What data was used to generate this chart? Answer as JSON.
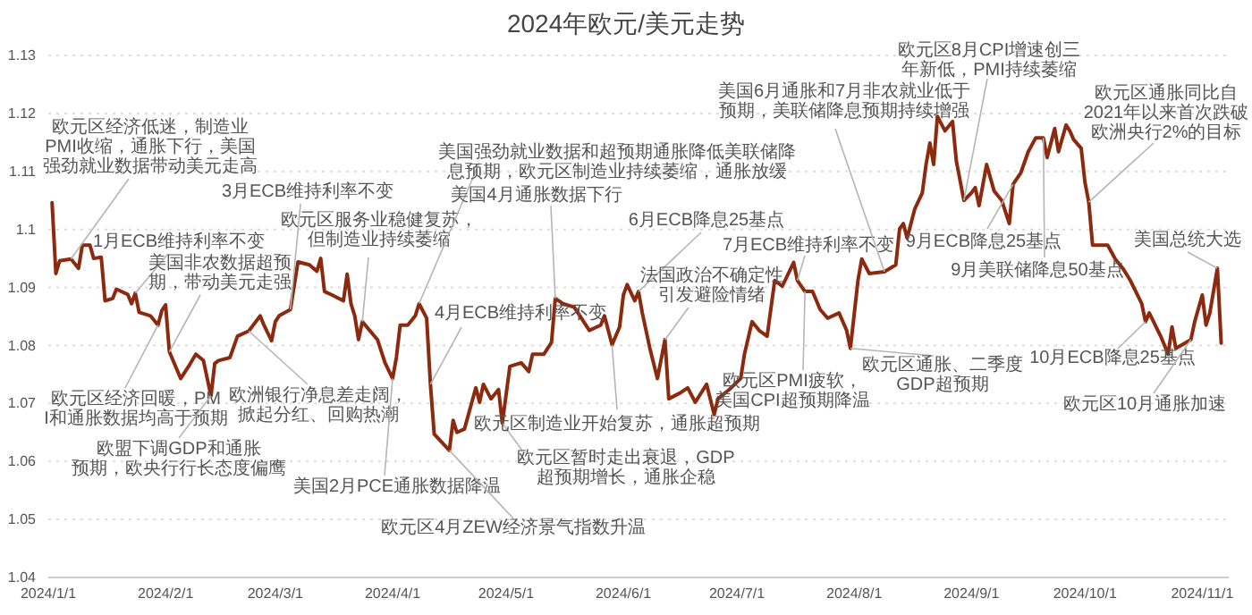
{
  "chart_data": {
    "type": "line",
    "title": "2024年欧元/美元走势",
    "x": [
      "2024-01-02",
      "2024-01-03",
      "2024-01-04",
      "2024-01-07",
      "2024-01-09",
      "2024-01-10",
      "2024-01-12",
      "2024-01-13",
      "2024-01-15",
      "2024-01-16",
      "2024-01-18",
      "2024-01-19",
      "2024-01-22",
      "2024-01-23",
      "2024-01-24",
      "2024-01-25",
      "2024-01-28",
      "2024-01-30",
      "2024-01-31",
      "2024-02-01",
      "2024-02-02",
      "2024-02-05",
      "2024-02-07",
      "2024-02-09",
      "2024-02-11",
      "2024-02-13",
      "2024-02-14",
      "2024-02-15",
      "2024-02-18",
      "2024-02-20",
      "2024-02-23",
      "2024-02-26",
      "2024-02-27",
      "2024-02-29",
      "2024-03-01",
      "2024-03-02",
      "2024-03-05",
      "2024-03-07",
      "2024-03-10",
      "2024-03-12",
      "2024-03-13",
      "2024-03-14",
      "2024-03-16",
      "2024-03-19",
      "2024-03-20",
      "2024-03-21",
      "2024-03-22",
      "2024-03-23",
      "2024-03-24",
      "2024-03-28",
      "2024-03-30",
      "2024-04-01",
      "2024-04-02",
      "2024-04-03",
      "2024-04-05",
      "2024-04-07",
      "2024-04-08",
      "2024-04-10",
      "2024-04-11",
      "2024-04-12",
      "2024-04-16",
      "2024-04-17",
      "2024-04-18",
      "2024-04-20",
      "2024-04-23",
      "2024-04-24",
      "2024-04-25",
      "2024-04-27",
      "2024-04-29",
      "2024-04-30",
      "2024-05-02",
      "2024-05-05",
      "2024-05-07",
      "2024-05-08",
      "2024-05-11",
      "2024-05-13",
      "2024-05-14",
      "2024-05-16",
      "2024-05-19",
      "2024-05-23",
      "2024-05-26",
      "2024-05-27",
      "2024-05-29",
      "2024-05-31",
      "2024-06-01",
      "2024-06-02",
      "2024-06-04",
      "2024-06-05",
      "2024-06-06",
      "2024-06-08",
      "2024-06-10",
      "2024-06-12",
      "2024-06-13",
      "2024-06-16",
      "2024-06-18",
      "2024-06-20",
      "2024-06-23",
      "2024-06-25",
      "2024-06-26",
      "2024-06-29",
      "2024-07-02",
      "2024-07-03",
      "2024-07-05",
      "2024-07-07",
      "2024-07-09",
      "2024-07-11",
      "2024-07-13",
      "2024-07-16",
      "2024-07-17",
      "2024-07-19",
      "2024-07-21",
      "2024-07-23",
      "2024-07-25",
      "2024-07-28",
      "2024-07-30",
      "2024-07-31",
      "2024-08-02",
      "2024-08-03",
      "2024-08-05",
      "2024-08-09",
      "2024-08-12",
      "2024-08-13",
      "2024-08-14",
      "2024-08-15",
      "2024-08-17",
      "2024-08-19",
      "2024-08-20",
      "2024-08-21",
      "2024-08-22",
      "2024-08-23",
      "2024-08-25",
      "2024-08-27",
      "2024-08-28",
      "2024-08-30",
      "2024-09-01",
      "2024-09-02",
      "2024-09-03",
      "2024-09-05",
      "2024-09-07",
      "2024-09-09",
      "2024-09-11",
      "2024-09-12",
      "2024-09-14",
      "2024-09-16",
      "2024-09-18",
      "2024-09-20",
      "2024-09-21",
      "2024-09-23",
      "2024-09-24",
      "2024-09-26",
      "2024-09-27",
      "2024-09-28",
      "2024-09-30",
      "2024-10-01",
      "2024-10-02",
      "2024-10-03",
      "2024-10-07",
      "2024-10-09",
      "2024-10-11",
      "2024-10-13",
      "2024-10-16",
      "2024-10-17",
      "2024-10-18",
      "2024-10-21",
      "2024-10-23",
      "2024-10-24",
      "2024-10-25",
      "2024-10-29",
      "2024-10-30",
      "2024-11-01",
      "2024-11-02",
      "2024-11-03",
      "2024-11-05",
      "2024-11-06"
    ],
    "series": [
      {
        "color": "#8b2a0e",
        "values": [
          1.1046,
          1.0924,
          1.0946,
          1.0949,
          1.0933,
          1.0973,
          1.0973,
          1.095,
          1.0952,
          1.0877,
          1.0881,
          1.0897,
          1.0888,
          1.0872,
          1.089,
          1.0857,
          1.0851,
          1.0835,
          1.086,
          1.087,
          1.0789,
          1.0743,
          1.0763,
          1.0785,
          1.0774,
          1.0713,
          1.0769,
          1.0774,
          1.0779,
          1.0816,
          1.0825,
          1.0851,
          1.0835,
          1.0808,
          1.0841,
          1.0851,
          1.0862,
          1.0944,
          1.0939,
          1.0928,
          1.095,
          1.0893,
          1.0887,
          1.0877,
          1.0923,
          1.0872,
          1.0851,
          1.081,
          1.0841,
          1.081,
          1.077,
          1.0743,
          1.0779,
          1.0835,
          1.0835,
          1.0851,
          1.0872,
          1.0847,
          1.0733,
          1.0647,
          1.0619,
          1.0671,
          1.065,
          1.0656,
          1.0727,
          1.0702,
          1.0733,
          1.0708,
          1.0724,
          1.0666,
          1.0764,
          1.077,
          1.0755,
          1.0785,
          1.0785,
          1.0805,
          1.0881,
          1.0872,
          1.0866,
          1.0826,
          1.0835,
          1.0851,
          1.0801,
          1.0832,
          1.0887,
          1.0905,
          1.0877,
          1.0893,
          1.0856,
          1.0795,
          1.0743,
          1.081,
          1.0708,
          1.0718,
          1.0727,
          1.0702,
          1.0733,
          1.0681,
          1.0708,
          1.0724,
          1.0743,
          1.0785,
          1.0841,
          1.0825,
          1.0816,
          1.0912,
          1.0902,
          1.0943,
          1.0912,
          1.0893,
          1.0893,
          1.0862,
          1.0847,
          1.0856,
          1.0826,
          1.0795,
          1.0912,
          1.0949,
          1.0924,
          1.0927,
          1.0939,
          1.1001,
          1.101,
          1.0985,
          1.1035,
          1.1063,
          1.1112,
          1.1149,
          1.1112,
          1.1195,
          1.117,
          1.1186,
          1.1118,
          1.105,
          1.1063,
          1.1072,
          1.1041,
          1.1112,
          1.1066,
          1.105,
          1.101,
          1.1078,
          1.1097,
          1.1134,
          1.1158,
          1.1158,
          1.1124,
          1.1174,
          1.1134,
          1.118,
          1.117,
          1.1155,
          1.114,
          1.1081,
          1.1047,
          1.0973,
          1.0973,
          1.0949,
          1.0933,
          1.0912,
          1.0872,
          1.0841,
          1.0856,
          1.0816,
          1.0785,
          1.0832,
          1.0795,
          1.081,
          1.0841,
          1.0887,
          1.0835,
          1.0856,
          1.0933,
          1.0804
        ]
      }
    ],
    "xlim": [
      "2024-01-01",
      "2024-11-08"
    ],
    "xticks": [
      {
        "value": "2024-01-01",
        "label": "2024/1/1"
      },
      {
        "value": "2024-02-01",
        "label": "2024/2/1"
      },
      {
        "value": "2024-03-01",
        "label": "2024/3/1"
      },
      {
        "value": "2024-04-01",
        "label": "2024/4/1"
      },
      {
        "value": "2024-05-01",
        "label": "2024/5/1"
      },
      {
        "value": "2024-06-01",
        "label": "2024/6/1"
      },
      {
        "value": "2024-07-01",
        "label": "2024/7/1"
      },
      {
        "value": "2024-08-01",
        "label": "2024/8/1"
      },
      {
        "value": "2024-09-01",
        "label": "2024/9/1"
      },
      {
        "value": "2024-10-01",
        "label": "2024/10/1"
      },
      {
        "value": "2024-11-01",
        "label": "2024/11/1"
      }
    ],
    "ylim": [
      1.04,
      1.13
    ],
    "yticks": [
      1.04,
      1.05,
      1.06,
      1.07,
      1.08,
      1.09,
      1.1,
      1.11,
      1.12,
      1.13
    ],
    "grid": "y",
    "annotations": [
      {
        "text": "欧元区经济低迷，制造业PMI收缩，通胀下行，美国强劲就业数据带动美元走高",
        "x": "2024-01-07",
        "y": 1.0949
      },
      {
        "text": "1月ECB维持利率不变",
        "x": "2024-01-24",
        "y": 1.089
      },
      {
        "text": "美国非农数据超预期，带动美元走强",
        "x": "2024-02-02",
        "y": 1.0789
      },
      {
        "text": "欧元区经济回暖，PMI和通胀数据均高于预期",
        "x": "2024-01-30",
        "y": 1.0835
      },
      {
        "text": "欧盟下调GDP和通胀预期，欧央行行长态度偏鹰",
        "x": "2024-02-13",
        "y": 1.0713
      },
      {
        "text": "欧洲银行净息差走阔，掀起分红、回购热潮",
        "x": "2024-02-23",
        "y": 1.0825
      },
      {
        "text": "3月ECB维持利率不变",
        "x": "2024-03-05",
        "y": 1.0862
      },
      {
        "text": "欧元区服务业稳健复苏，但制造业持续萎缩",
        "x": "2024-03-24",
        "y": 1.0841
      },
      {
        "text": "美国2月PCE通胀数据降温",
        "x": "2024-04-01",
        "y": 1.0743
      },
      {
        "text": "4月ECB维持利率不变",
        "x": "2024-04-11",
        "y": 1.0733
      },
      {
        "text": "欧元区4月ZEW经济景气指数升温",
        "x": "2024-04-16",
        "y": 1.0619
      },
      {
        "text": "欧元区暂时走出衰退，GDP超预期增长，通胀企稳",
        "x": "2024-04-30",
        "y": 1.0666
      },
      {
        "text": "美国强劲就业数据和超预期通胀降低美联储降息预期，欧元区制造业持续萎缩，通胀放缓",
        "x": "2024-04-08",
        "y": 1.0872
      },
      {
        "text": "美国4月通胀数据下行",
        "x": "2024-05-14",
        "y": 1.0881
      },
      {
        "text": "6月ECB降息25基点",
        "x": "2024-06-05",
        "y": 1.0893
      },
      {
        "text": "法国政治不确定性引发避险情绪",
        "x": "2024-06-12",
        "y": 1.081
      },
      {
        "text": "欧元区制造业开始复苏，通胀超预期",
        "x": "2024-05-29",
        "y": 1.0801
      },
      {
        "text": "7月ECB维持利率不变",
        "x": "2024-07-17",
        "y": 1.0912
      },
      {
        "text": "欧元区PMI疲软，美国CPI超预期降温",
        "x": "2024-07-19",
        "y": 1.0893
      },
      {
        "text": "美国6月通胀和7月非农就业低于预期，美联储降息预期持续增强",
        "x": "2024-08-09",
        "y": 1.0927
      },
      {
        "text": "欧元区通胀、二季度GDP超预期",
        "x": "2024-07-31",
        "y": 1.0795
      },
      {
        "text": "欧元区8月CPI增速创三年新低，PMI持续萎缩",
        "x": "2024-08-30",
        "y": 1.105
      },
      {
        "text": "9月ECB降息25基点",
        "x": "2024-09-12",
        "y": 1.1078
      },
      {
        "text": "9月美联储降息50基点",
        "x": "2024-09-20",
        "y": 1.1158
      },
      {
        "text": "欧元区通胀同比自2021年以来首次跌破欧洲央行2%的目标",
        "x": "2024-10-02",
        "y": 1.1047
      },
      {
        "text": "美国总统大选",
        "x": "2024-11-05",
        "y": 1.0933
      },
      {
        "text": "10月ECB降息25基点",
        "x": "2024-10-17",
        "y": 1.0841
      },
      {
        "text": "欧元区10月通胀加速",
        "x": "2024-10-29",
        "y": 1.081
      }
    ]
  }
}
